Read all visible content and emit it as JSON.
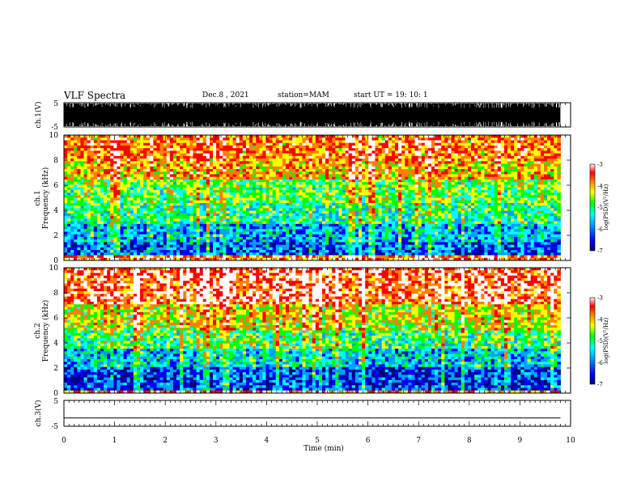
{
  "header": {
    "title": "VLF Spectra",
    "date": "Dec.8 , 2021",
    "station": "station=MAM",
    "start": "start UT = 19: 10: 1"
  },
  "chart_data": [
    {
      "type": "line",
      "panel": "ch1-waveform",
      "ylabel": "ch.1(V)",
      "ylim": [
        -5,
        5
      ],
      "yticks": [
        "5",
        "-5"
      ],
      "xlim": [
        0,
        10
      ],
      "description_values": "dense waveform saturating between -5 and 5 V"
    },
    {
      "type": "heatmap",
      "panel": "ch1-spectrogram",
      "ylabel": "ch.1 Frequency (kHz)",
      "ylim": [
        0,
        10
      ],
      "yticks": [
        "0",
        "2",
        "4",
        "6",
        "8",
        "10"
      ],
      "xlim": [
        0,
        10
      ],
      "x_data_end": 9.8,
      "band_log_psd": [
        {
          "f": [
            0,
            0.4
          ],
          "v": -3.9
        },
        {
          "f": [
            0.4,
            1.5
          ],
          "v": -6.2
        },
        {
          "f": [
            1.5,
            3.0
          ],
          "v": -5.8
        },
        {
          "f": [
            3.0,
            4.5
          ],
          "v": -5.3
        },
        {
          "f": [
            4.5,
            6.5
          ],
          "v": -5.0
        },
        {
          "f": [
            6.5,
            8.0
          ],
          "v": -4.4
        },
        {
          "f": [
            8.0,
            10.0
          ],
          "v": -4.1
        }
      ],
      "colorbar": {
        "label": "log(PSD)(V²/Hz)",
        "range": [
          -7,
          -3
        ],
        "ticks": [
          "-3",
          "-4",
          "-5",
          "-6",
          "-7"
        ]
      }
    },
    {
      "type": "heatmap",
      "panel": "ch2-spectrogram",
      "ylabel": "ch.2 Frequency (kHz)",
      "ylim": [
        0,
        10
      ],
      "yticks": [
        "0",
        "2",
        "4",
        "6",
        "8",
        "10"
      ],
      "xlim": [
        0,
        10
      ],
      "x_data_end": 9.8,
      "band_log_psd": [
        {
          "f": [
            0,
            0.3
          ],
          "v": -4.0
        },
        {
          "f": [
            0.3,
            2.0
          ],
          "v": -6.3
        },
        {
          "f": [
            2.0,
            3.5
          ],
          "v": -5.7
        },
        {
          "f": [
            3.5,
            5.0
          ],
          "v": -5.2
        },
        {
          "f": [
            5.0,
            7.0
          ],
          "v": -4.6
        },
        {
          "f": [
            7.0,
            10.0
          ],
          "v": -3.8
        }
      ],
      "colorbar": {
        "label": "log(PSD)(V²/Hz)",
        "range": [
          -7,
          -3
        ],
        "ticks": [
          "-3",
          "-4",
          "-5",
          "-6",
          "-7"
        ]
      }
    },
    {
      "type": "line",
      "panel": "ch3-waveform",
      "ylabel": "ch.3(V)",
      "ylim": [
        -5,
        5
      ],
      "yticks": [
        "5",
        "-5"
      ],
      "xlim": [
        0,
        10
      ],
      "x": [
        0,
        9.8
      ],
      "y": [
        -1.8,
        -1.8
      ]
    }
  ],
  "xaxis": {
    "label": "Time (min)",
    "ticks": [
      "0",
      "1",
      "2",
      "3",
      "4",
      "5",
      "6",
      "7",
      "8",
      "9",
      "10"
    ]
  },
  "colors": {
    "scale": [
      "#000080",
      "#0000ff",
      "#00a0ff",
      "#00ffff",
      "#00ff00",
      "#ffff00",
      "#ff8000",
      "#ff0000",
      "#ffffff"
    ]
  }
}
